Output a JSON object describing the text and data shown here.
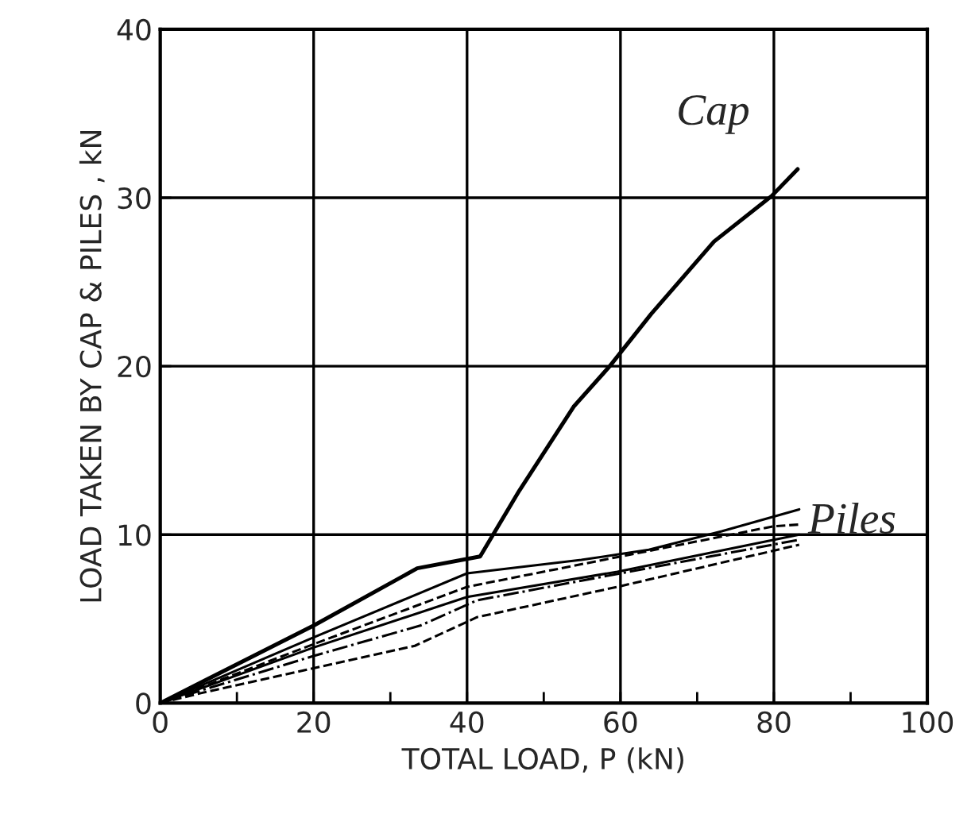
{
  "chart_data": {
    "type": "line",
    "xlabel": "TOTAL LOAD, P (kN)",
    "ylabel": "LOAD TAKEN BY CAP & PILES , kN",
    "xlim": [
      0,
      100
    ],
    "ylim": [
      0,
      40
    ],
    "xticks": [
      0,
      {
        "value": 10,
        "label": null
      },
      20,
      {
        "value": 30,
        "label": null
      },
      40,
      {
        "value": 50,
        "label": null
      },
      60,
      {
        "value": 70,
        "label": null
      },
      80,
      {
        "value": 90,
        "label": null
      },
      100
    ],
    "yticks": [
      0,
      10,
      20,
      30,
      40
    ],
    "grid": true,
    "marker": "none",
    "series": [
      {
        "color": "#000000",
        "line_style": "solid",
        "x": [
          0,
          20,
          33.5,
          41.7,
          46.8,
          53.9,
          58.6,
          64.0,
          72.2,
          79.7,
          83.1
        ],
        "values": [
          0,
          4.6,
          8.0,
          8.7,
          12.6,
          17.6,
          20.0,
          23.1,
          27.4,
          30.1,
          31.7
        ]
      },
      {
        "color": "#000000",
        "line_style": "solid",
        "x": [
          0,
          20,
          40,
          54.9,
          63.7,
          73.2,
          83.3
        ],
        "values": [
          0,
          3.9,
          7.7,
          8.5,
          9.1,
          10.2,
          11.5
        ]
      },
      {
        "color": "#000000",
        "line_style": "dashed",
        "x": [
          0,
          20,
          40,
          80,
          83.3
        ],
        "values": [
          0,
          3.5,
          6.9,
          10.5,
          10.6
        ]
      },
      {
        "color": "#000000",
        "line_style": "solid",
        "x": [
          0,
          20,
          40,
          59.6,
          83.3
        ],
        "values": [
          0,
          3.3,
          6.3,
          7.8,
          10.0
        ]
      },
      {
        "color": "#000000",
        "line_style": "dashdot",
        "x": [
          0,
          20,
          33.9,
          41.3,
          83.3
        ],
        "values": [
          0,
          2.8,
          4.6,
          6.1,
          9.7
        ]
      },
      {
        "color": "#000000",
        "line_style": "dashed",
        "x": [
          0,
          5.4,
          33.2,
          41.3,
          59.6,
          83.3
        ],
        "values": [
          0,
          0.6,
          3.4,
          5.1,
          6.9,
          9.4
        ]
      }
    ],
    "annotations": [
      "Cap",
      "Piles"
    ]
  }
}
